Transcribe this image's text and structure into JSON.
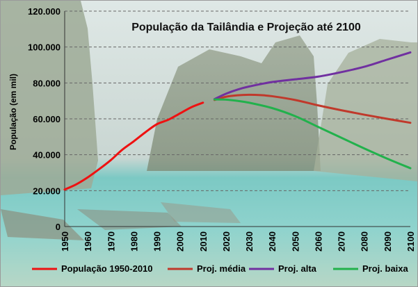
{
  "chart_data": {
    "type": "line",
    "title": "População da Tailândia e Projeção até 2100",
    "xlabel": "",
    "ylabel": "População (em mil)",
    "xlim": [
      1950,
      2100
    ],
    "ylim": [
      0,
      120000
    ],
    "x_ticks": [
      "1950",
      "1960",
      "1970",
      "1980",
      "1990",
      "2000",
      "2010",
      "2020",
      "2030",
      "2040",
      "2050",
      "2060",
      "2070",
      "2080",
      "2090",
      "2100"
    ],
    "y_ticks": [
      "0",
      "20.000",
      "40.000",
      "60.000",
      "80.000",
      "100.000",
      "120.000"
    ],
    "grid": true,
    "legend_position": "bottom",
    "series": [
      {
        "name": "População 1950-2010",
        "color": "#ee1111",
        "x": [
          1950,
          1955,
          1960,
          1965,
          1970,
          1975,
          1980,
          1985,
          1990,
          1995,
          2000,
          2005,
          2010
        ],
        "y": [
          20600,
          23500,
          27400,
          32000,
          37000,
          42800,
          47500,
          52500,
          57000,
          59500,
          63000,
          66500,
          69000
        ]
      },
      {
        "name": "Proj. média",
        "color": "#c0392b",
        "x": [
          2015,
          2020,
          2025,
          2030,
          2035,
          2040,
          2050,
          2060,
          2070,
          2080,
          2090,
          2100
        ],
        "y": [
          70500,
          72300,
          73100,
          73400,
          73200,
          72600,
          70500,
          67500,
          64800,
          62300,
          60000,
          57800
        ]
      },
      {
        "name": "Proj. alta",
        "color": "#7030a0",
        "x": [
          2015,
          2020,
          2025,
          2030,
          2040,
          2050,
          2060,
          2070,
          2080,
          2090,
          2100
        ],
        "y": [
          71000,
          74000,
          76300,
          78000,
          80500,
          82000,
          83500,
          86000,
          89000,
          93000,
          97000
        ]
      },
      {
        "name": "Proj. baixa",
        "color": "#22b14c",
        "x": [
          2015,
          2020,
          2025,
          2030,
          2040,
          2050,
          2060,
          2070,
          2080,
          2090,
          2100
        ],
        "y": [
          70800,
          70700,
          70000,
          69000,
          66000,
          61500,
          55500,
          49500,
          43500,
          37800,
          32500
        ]
      }
    ]
  }
}
